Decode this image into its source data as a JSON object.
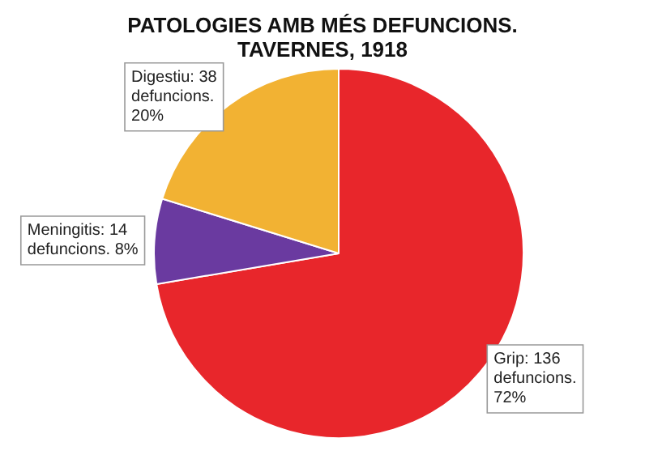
{
  "chart_data": {
    "type": "pie",
    "title": "PATOLOGIES AMB MÉS DEFUNCIONS. TAVERNES, 1918",
    "categories": [
      "Grip",
      "Meningitis",
      "Digestiu"
    ],
    "values": [
      136,
      14,
      38
    ],
    "colors": [
      "#e8262b",
      "#6a3aa0",
      "#f2b233"
    ],
    "value_labels": [
      ": 136 defuncions. 72%",
      ": 14 defuncions. 8%",
      ": 38 defuncions. 20%"
    ]
  }
}
